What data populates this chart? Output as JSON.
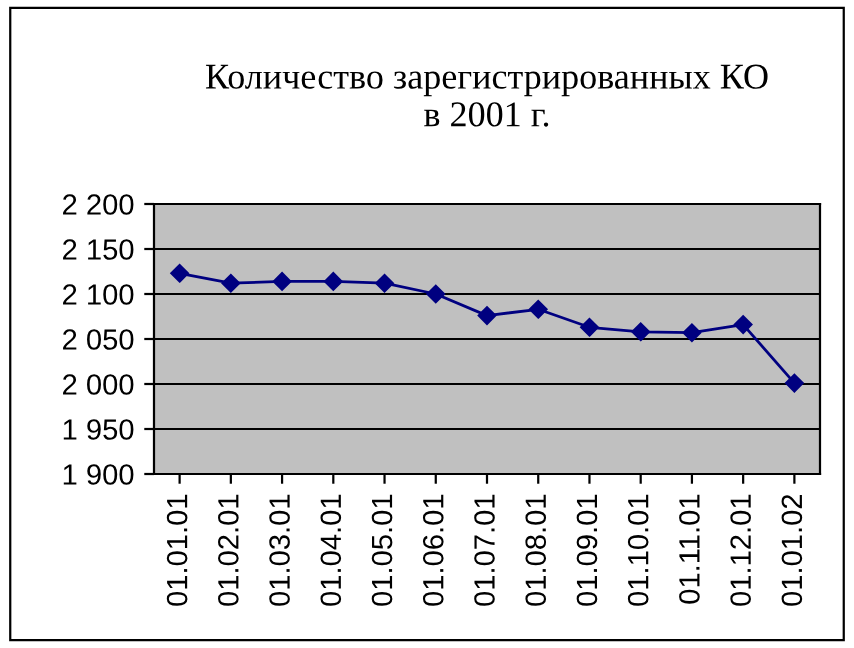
{
  "chart_data": {
    "type": "line",
    "title": "Количество зарегистрированных КО\nв 2001 г.",
    "categories": [
      "01.01.01",
      "01.02.01",
      "01.03.01",
      "01.04.01",
      "01.05.01",
      "01.06.01",
      "01.07.01",
      "01.08.01",
      "01.09.01",
      "01.10.01",
      "01.11.01",
      "01.12.01",
      "01.01.02"
    ],
    "series": [
      {
        "color": "#000080",
        "values": [
          2123,
          2112,
          2114,
          2114,
          2112,
          2100,
          2076,
          2083,
          2063,
          2058,
          2057,
          2066,
          2001
        ]
      }
    ],
    "ylim": [
      1900,
      2200
    ],
    "yticks": [
      {
        "value": 1900,
        "label": "1 900"
      },
      {
        "value": 1950,
        "label": "1 950"
      },
      {
        "value": 2000,
        "label": "2 000"
      },
      {
        "value": 2050,
        "label": "2 050"
      },
      {
        "value": 2100,
        "label": "2 100"
      },
      {
        "value": 2150,
        "label": "2 150"
      },
      {
        "value": 2200,
        "label": "2 200"
      }
    ],
    "grid": "y",
    "marker": "diamond",
    "line_style": "solid",
    "legend": false
  }
}
